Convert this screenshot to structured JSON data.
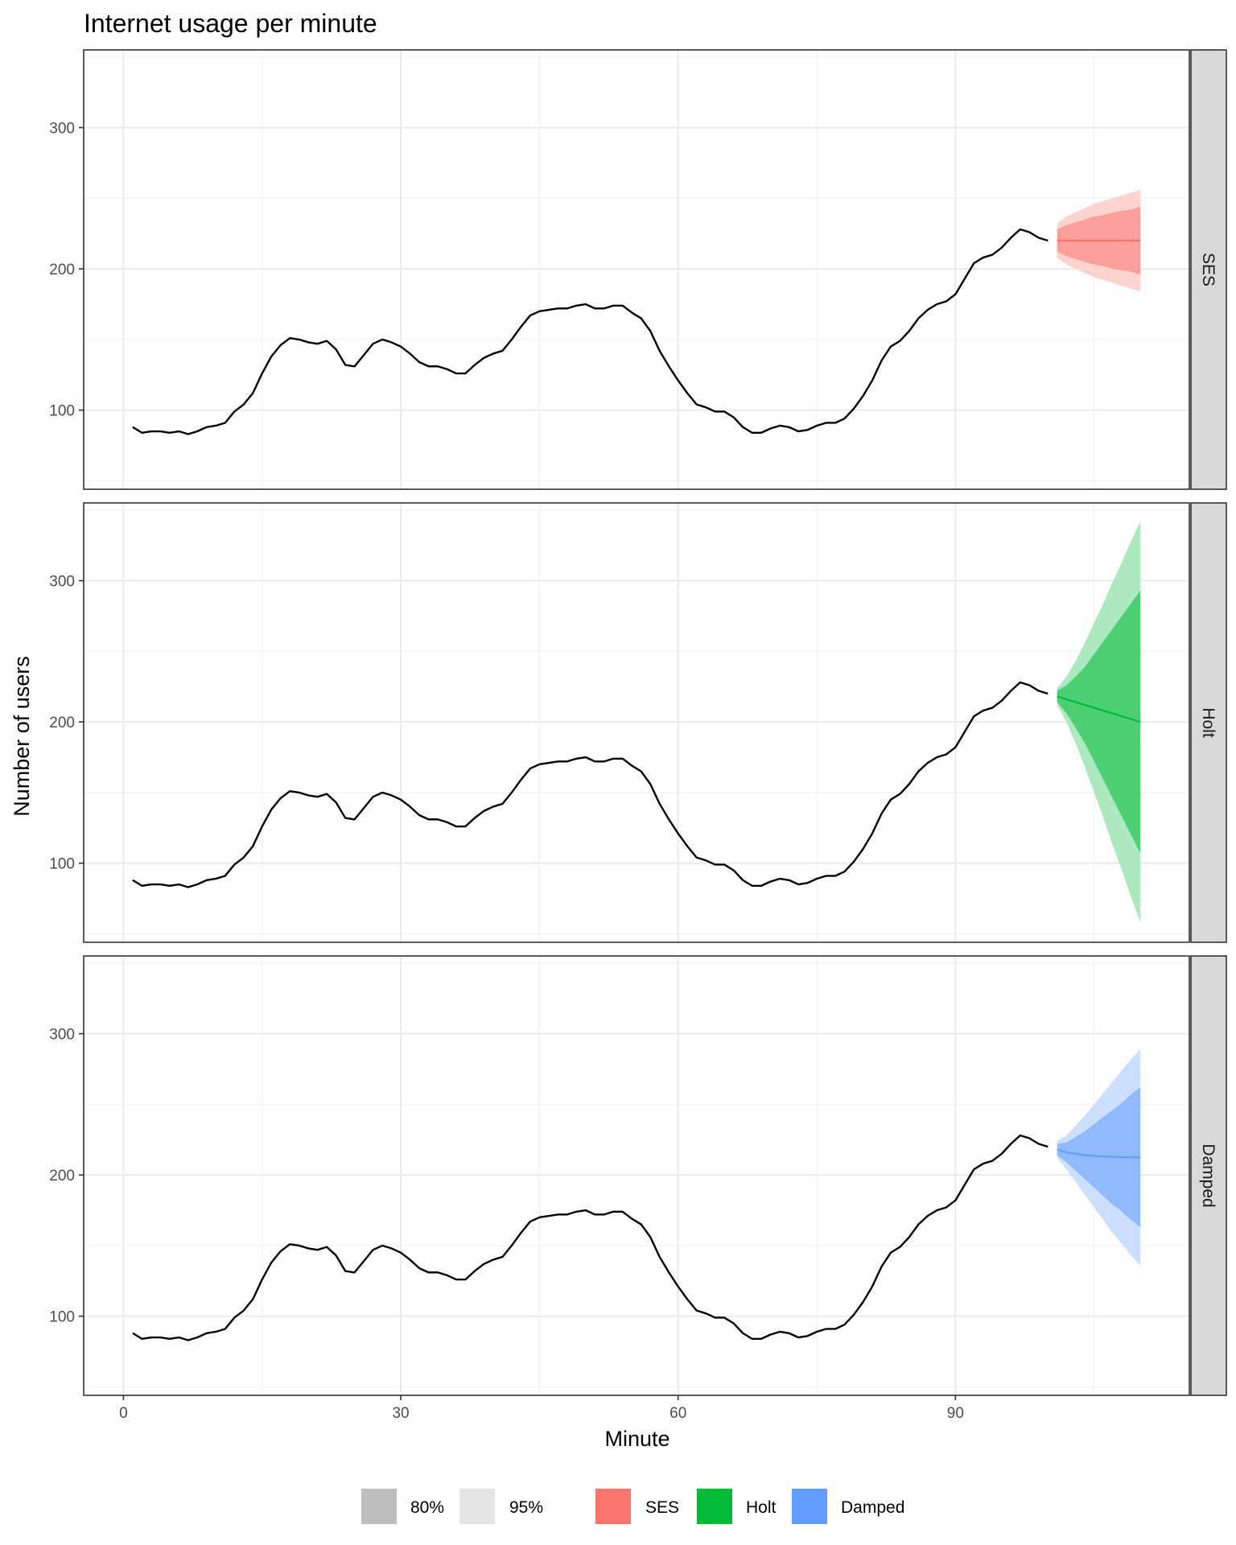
{
  "chart_data": {
    "type": "line",
    "title": "Internet usage per minute",
    "xlabel": "Minute",
    "ylabel": "Number of users",
    "xlim": [
      -4.3,
      115.3
    ],
    "ylim": [
      44,
      355
    ],
    "x_ticks": [
      0,
      30,
      60,
      90
    ],
    "x_ticks_minor": [
      15,
      45,
      75,
      105
    ],
    "y_ticks": [
      100,
      200,
      300
    ],
    "y_ticks_minor": [
      50,
      150,
      250,
      350
    ],
    "grid": true,
    "legend_position": "bottom",
    "observed": {
      "x": [
        1,
        2,
        3,
        4,
        5,
        6,
        7,
        8,
        9,
        10,
        11,
        12,
        13,
        14,
        15,
        16,
        17,
        18,
        19,
        20,
        21,
        22,
        23,
        24,
        25,
        26,
        27,
        28,
        29,
        30,
        31,
        32,
        33,
        34,
        35,
        36,
        37,
        38,
        39,
        40,
        41,
        42,
        43,
        44,
        45,
        46,
        47,
        48,
        49,
        50,
        51,
        52,
        53,
        54,
        55,
        56,
        57,
        58,
        59,
        60,
        61,
        62,
        63,
        64,
        65,
        66,
        67,
        68,
        69,
        70,
        71,
        72,
        73,
        74,
        75,
        76,
        77,
        78,
        79,
        80,
        81,
        82,
        83,
        84,
        85,
        86,
        87,
        88,
        89,
        90,
        91,
        92,
        93,
        94,
        95,
        96,
        97,
        98,
        99,
        100
      ],
      "values": [
        88,
        84,
        85,
        85,
        84,
        85,
        83,
        85,
        88,
        89,
        91,
        99,
        104,
        112,
        126,
        138,
        146,
        151,
        150,
        148,
        147,
        149,
        143,
        132,
        131,
        139,
        147,
        150,
        148,
        145,
        140,
        134,
        131,
        131,
        129,
        126,
        126,
        132,
        137,
        140,
        142,
        150,
        159,
        167,
        170,
        171,
        172,
        172,
        174,
        175,
        172,
        172,
        174,
        174,
        169,
        165,
        156,
        142,
        131,
        121,
        112,
        104,
        102,
        99,
        99,
        95,
        88,
        84,
        84,
        87,
        89,
        88,
        85,
        86,
        89,
        91,
        91,
        94,
        101,
        110,
        121,
        135,
        145,
        149,
        156,
        165,
        171,
        175,
        177,
        182,
        193,
        204,
        208,
        210,
        215,
        222,
        228,
        226,
        222,
        220
      ]
    },
    "forecast_x": [
      101,
      102,
      103,
      104,
      105,
      106,
      107,
      108,
      109,
      110
    ],
    "panels": [
      {
        "name": "SES",
        "color": "#F8766D",
        "mean": [
          220,
          220,
          220,
          220,
          220,
          220,
          220,
          220,
          220,
          220
        ],
        "lo80": [
          212,
          209,
          207,
          205,
          203,
          202,
          200,
          199,
          198,
          196
        ],
        "hi80": [
          228,
          231,
          233,
          235,
          237,
          238,
          240,
          241,
          242,
          244
        ],
        "lo95": [
          208,
          203,
          200,
          197,
          194,
          192,
          190,
          188,
          186,
          184
        ],
        "hi95": [
          232,
          237,
          240,
          243,
          246,
          248,
          250,
          252,
          254,
          256
        ]
      },
      {
        "name": "Holt",
        "color": "#00BA38",
        "mean": [
          218,
          216,
          214,
          212,
          210,
          208,
          206,
          204,
          202,
          200
        ],
        "lo80": [
          214,
          206,
          196,
          185,
          172,
          159,
          146,
          133,
          120,
          107
        ],
        "hi80": [
          222,
          226,
          232,
          239,
          248,
          257,
          266,
          275,
          284,
          293
        ],
        "lo95": [
          212,
          200,
          185,
          168,
          150,
          132,
          113,
          95,
          76,
          58
        ],
        "hi95": [
          224,
          232,
          243,
          256,
          270,
          284,
          299,
          313,
          328,
          342
        ]
      },
      {
        "name": "Damped",
        "color": "#619CFF",
        "mean": [
          218,
          216,
          215,
          214,
          213.5,
          213,
          212.8,
          212.6,
          212.5,
          212.4
        ],
        "lo80": [
          214,
          209,
          203,
          197,
          191,
          185,
          179,
          174,
          168,
          163
        ],
        "hi80": [
          222,
          223,
          227,
          231,
          236,
          241,
          246,
          251,
          257,
          262
        ],
        "lo95": [
          212,
          204,
          195,
          186,
          177,
          168,
          159,
          151,
          143,
          136
        ],
        "hi95": [
          224,
          228,
          235,
          242,
          250,
          258,
          266,
          274,
          282,
          289
        ]
      }
    ],
    "legend": {
      "levels": [
        {
          "label": "80%",
          "color": "#bebebe"
        },
        {
          "label": "95%",
          "color": "#e4e4e4"
        }
      ],
      "series": [
        {
          "label": "SES",
          "color": "#F8766D"
        },
        {
          "label": "Holt",
          "color": "#00BA38"
        },
        {
          "label": "Damped",
          "color": "#619CFF"
        }
      ]
    }
  }
}
